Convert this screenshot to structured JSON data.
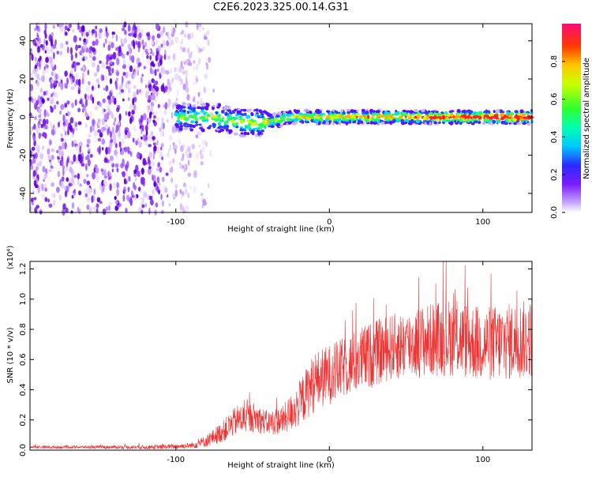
{
  "title": "C2E6.2023.325.00.14.G31",
  "chart_data": [
    {
      "type": "heatmap",
      "xlabel": "Height of straight line (km)",
      "ylabel": "Frequency (Hz)",
      "xlim": [
        -195,
        132
      ],
      "ylim": [
        -50,
        49
      ],
      "x_ticks": [
        -100,
        0,
        100
      ],
      "x_tick_labels": [
        "-100",
        "0",
        "100"
      ],
      "y_ticks": [
        -40,
        -20,
        0,
        20,
        40
      ],
      "y_tick_labels": [
        "-40",
        "-20",
        "0",
        "20",
        "40"
      ],
      "colorbar": {
        "label": "Normalized spectral amplitude",
        "range": [
          0,
          1
        ],
        "ticks": [
          0,
          0.2,
          0.4,
          0.6,
          0.8
        ],
        "tick_labels": [
          "0.0",
          "0.2",
          "0.4",
          "0.6",
          "0.8"
        ],
        "colormap": "rainbow (purple to red)"
      },
      "description_points": {
        "noise_region_x": [
          -195,
          -75
        ],
        "signal_center_x": [
          -100,
          132
        ],
        "signal_center_frequency_hz": 0,
        "peak_amplitude": 0.9
      },
      "grid": false
    },
    {
      "type": "line",
      "xlabel": "Height of straight line (km)",
      "ylabel": "SNR (10 * v/v)",
      "y_multiplier": "(x10⁴)",
      "xlim": [
        -195,
        132
      ],
      "ylim": [
        0,
        1.25
      ],
      "x_ticks": [
        -100,
        0,
        100
      ],
      "x_tick_labels": [
        "-100",
        "0",
        "100"
      ],
      "y_ticks": [
        0,
        0.2,
        0.4,
        0.6,
        0.8,
        1.0,
        1.2
      ],
      "y_tick_labels": [
        "0.0",
        "0.2",
        "0.4",
        "0.6",
        "0.8",
        "1.0",
        "1.2"
      ],
      "line_color": "#ee3333",
      "envelope_x": [
        -195,
        -150,
        -110,
        -90,
        -80,
        -70,
        -60,
        -50,
        -40,
        -30,
        -20,
        -10,
        0,
        10,
        20,
        40,
        60,
        80,
        100,
        120,
        132
      ],
      "envelope_mean": [
        0.02,
        0.02,
        0.02,
        0.03,
        0.06,
        0.12,
        0.2,
        0.22,
        0.18,
        0.2,
        0.3,
        0.45,
        0.5,
        0.55,
        0.6,
        0.68,
        0.72,
        0.75,
        0.7,
        0.72,
        0.74
      ],
      "envelope_spread": [
        0.01,
        0.01,
        0.015,
        0.02,
        0.04,
        0.07,
        0.1,
        0.1,
        0.08,
        0.1,
        0.15,
        0.2,
        0.2,
        0.2,
        0.22,
        0.22,
        0.24,
        0.26,
        0.25,
        0.26,
        0.26
      ],
      "grid": false
    }
  ]
}
